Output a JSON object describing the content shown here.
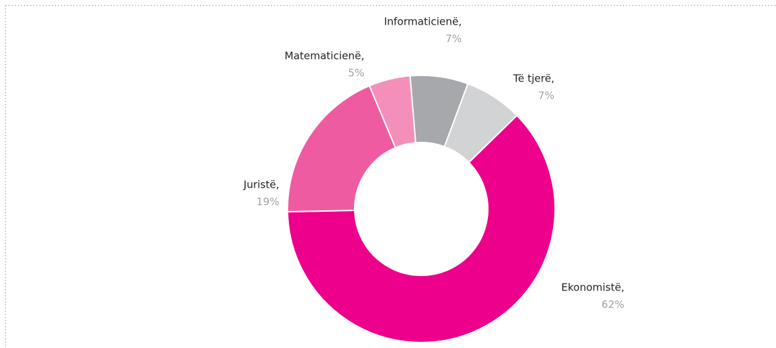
{
  "chart_data": {
    "type": "donut",
    "categories": [
      "Ekonomistë,",
      "Juristë,",
      "Matematicienë,",
      "Informaticienë,",
      "Të tjerë,"
    ],
    "values": [
      62,
      19,
      5,
      7,
      7
    ],
    "value_labels": [
      "62%",
      "19%",
      "5%",
      "7%",
      "7%"
    ],
    "colors": [
      "#ec008c",
      "#ef5ba1",
      "#f48fb9",
      "#a6a8ab",
      "#d1d3d4"
    ]
  }
}
